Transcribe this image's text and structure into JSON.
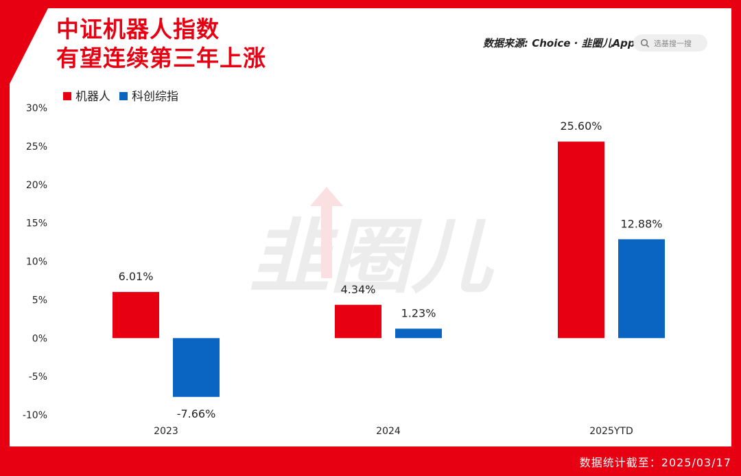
{
  "header": {
    "title_line1": "中证机器人指数",
    "title_line2": "有望连续第三年上涨",
    "source": "数据来源: Choice · 韭圈儿App",
    "search_placeholder": "选基搜一搜"
  },
  "footer": {
    "note": "数据统计截至：2025/03/17"
  },
  "watermark": "韭圈儿",
  "colors": {
    "brand": "#e60012",
    "series1": "#e60012",
    "series2": "#0a64c2"
  },
  "chart_data": {
    "type": "bar",
    "categories": [
      "2023",
      "2024",
      "2025YTD"
    ],
    "series": [
      {
        "name": "机器人",
        "values": [
          6.01,
          4.34,
          25.6
        ],
        "labels": [
          "6.01%",
          "4.34%",
          "25.60%"
        ]
      },
      {
        "name": "科创综指",
        "values": [
          -7.66,
          1.23,
          12.88
        ],
        "labels": [
          "-7.66%",
          "1.23%",
          "12.88%"
        ]
      }
    ],
    "ylim": [
      -10,
      30
    ],
    "yticks": [
      30,
      25,
      20,
      15,
      10,
      5,
      0,
      -5,
      -10
    ],
    "ytick_labels": [
      "30%",
      "25%",
      "20%",
      "15%",
      "10%",
      "5%",
      "0%",
      "-5%",
      "-10%"
    ],
    "legend": "top-left",
    "grid": false
  }
}
